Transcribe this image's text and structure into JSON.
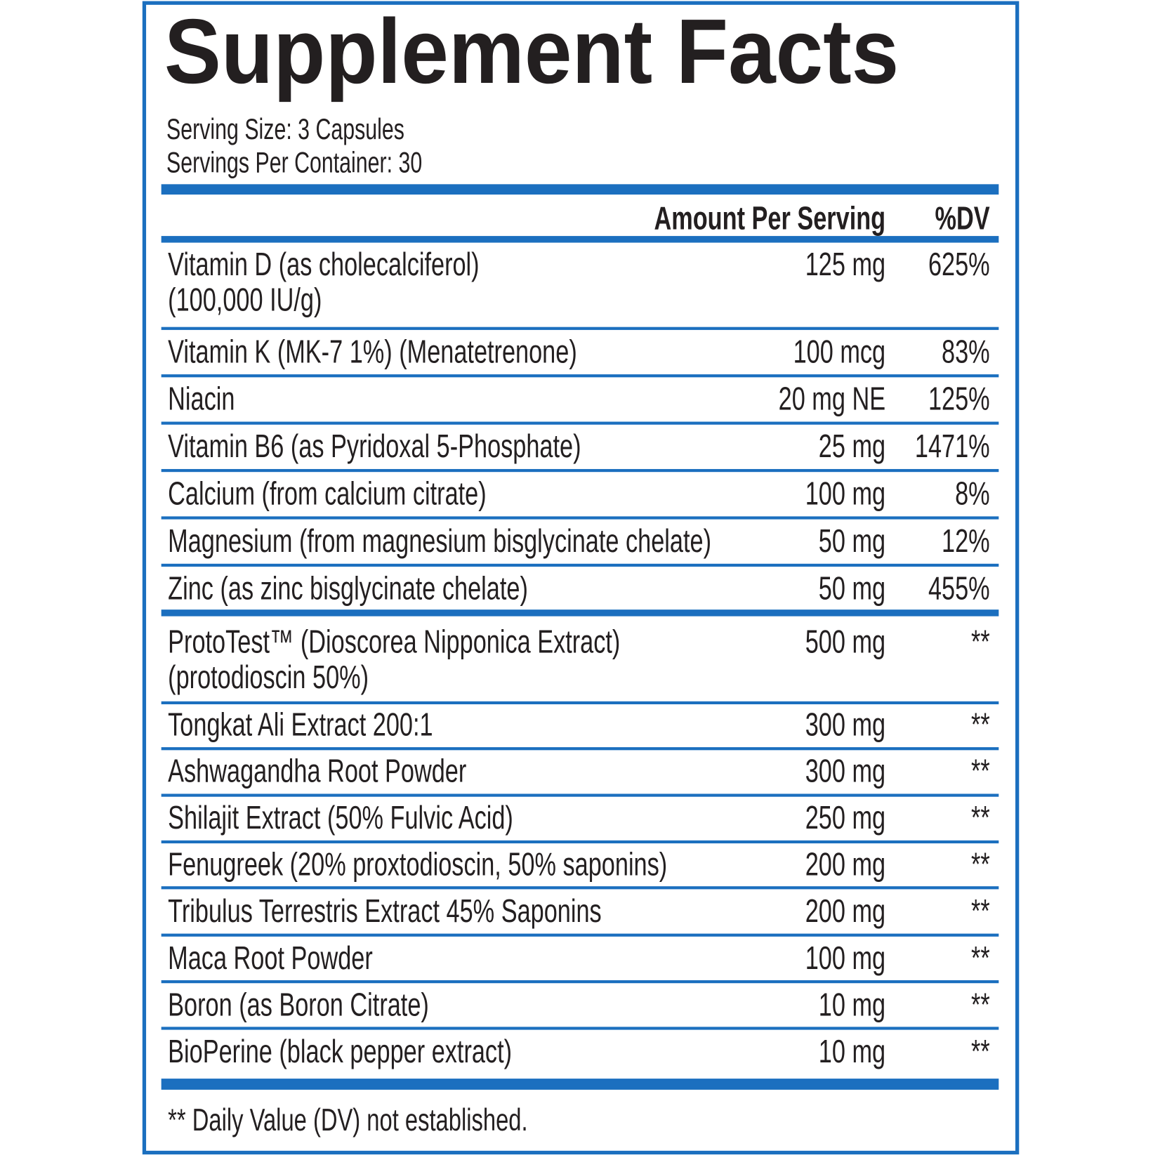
{
  "header": {
    "title": "Supplement Facts",
    "serving_size": "Serving Size: 3 Capsules",
    "servings_per_container": "Servings Per Container: 30"
  },
  "table": {
    "columns": [
      "Amount Per Serving",
      "%DV"
    ],
    "rows": [
      {
        "name": [
          "Vitamin D (as cholecalciferol)",
          "(100,000 IU/g)"
        ],
        "amount": "125 mg",
        "dv": "625%"
      },
      {
        "name": [
          "Vitamin K (MK-7 1%) (Menatetrenone)"
        ],
        "amount": "100 mcg",
        "dv": "83%"
      },
      {
        "name": [
          "Niacin"
        ],
        "amount": "20 mg NE",
        "dv": "125%"
      },
      {
        "name": [
          "Vitamin B6 (as Pyridoxal 5-Phosphate)"
        ],
        "amount": "25 mg",
        "dv": "1471%"
      },
      {
        "name": [
          "Calcium (from calcium citrate)"
        ],
        "amount": "100 mg",
        "dv": "8%"
      },
      {
        "name": [
          "Magnesium (from magnesium bisglycinate chelate)"
        ],
        "amount": "50 mg",
        "dv": "12%"
      },
      {
        "name": [
          "Zinc (as zinc bisglycinate chelate)"
        ],
        "amount": "50 mg",
        "dv": "455%"
      },
      {
        "name": [
          "ProtoTest™ (Dioscorea Nipponica Extract)",
          "(protodioscin 50%)"
        ],
        "amount": "500 mg",
        "dv": "**"
      },
      {
        "name": [
          "Tongkat Ali Extract 200:1"
        ],
        "amount": "300 mg",
        "dv": "**"
      },
      {
        "name": [
          "Ashwagandha Root Powder"
        ],
        "amount": "300 mg",
        "dv": "**"
      },
      {
        "name": [
          "Shilajit Extract (50% Fulvic Acid)"
        ],
        "amount": "250 mg",
        "dv": "**"
      },
      {
        "name": [
          "Fenugreek (20% proxtodioscin, 50% saponins)"
        ],
        "amount": "200 mg",
        "dv": "**"
      },
      {
        "name": [
          "Tribulus Terrestris Extract 45% Saponins"
        ],
        "amount": "200 mg",
        "dv": "**"
      },
      {
        "name": [
          "Maca Root Powder"
        ],
        "amount": "100 mg",
        "dv": "**"
      },
      {
        "name": [
          "Boron (as Boron Citrate)"
        ],
        "amount": "10 mg",
        "dv": "**"
      },
      {
        "name": [
          "BioPerine (black pepper extract)"
        ],
        "amount": "10 mg",
        "dv": "**"
      }
    ]
  },
  "footnote": "** Daily Value (DV) not established."
}
